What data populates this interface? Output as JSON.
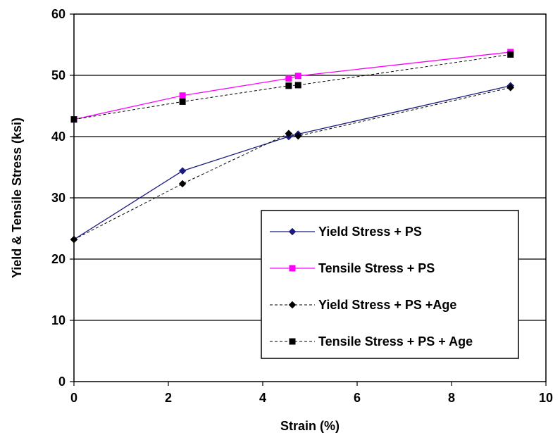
{
  "chart_data": {
    "type": "line",
    "xlabel": "Strain (%)",
    "ylabel": "Yield & Tensile Stress (ksi)",
    "xlim": [
      0,
      10
    ],
    "ylim": [
      0,
      60
    ],
    "xticks": [
      0,
      2,
      4,
      6,
      8,
      10
    ],
    "yticks": [
      0,
      10,
      20,
      30,
      40,
      50,
      60
    ],
    "grid": "horizontal",
    "legend_position": "bottom-right",
    "series": [
      {
        "name": "Yield Stress + PS",
        "color": "#1a1a80",
        "line_style": "solid",
        "marker": "diamond",
        "points": [
          [
            0,
            23.2
          ],
          [
            2.3,
            34.4
          ],
          [
            4.55,
            40.0
          ],
          [
            4.75,
            40.4
          ],
          [
            9.25,
            48.3
          ]
        ]
      },
      {
        "name": "Tensile Stress + PS",
        "color": "#ff00ff",
        "line_style": "solid",
        "marker": "square",
        "points": [
          [
            0,
            42.8
          ],
          [
            2.3,
            46.7
          ],
          [
            4.55,
            49.5
          ],
          [
            4.75,
            49.9
          ],
          [
            9.25,
            53.8
          ]
        ]
      },
      {
        "name": "Yield Stress + PS +Age",
        "color": "#000000",
        "line_style": "dashed",
        "marker": "diamond",
        "points": [
          [
            0,
            23.2
          ],
          [
            2.3,
            32.3
          ],
          [
            4.55,
            40.5
          ],
          [
            4.75,
            40.1
          ],
          [
            9.25,
            48.0
          ]
        ]
      },
      {
        "name": "Tensile Stress + PS + Age",
        "color": "#000000",
        "line_style": "dashed",
        "marker": "square",
        "points": [
          [
            0,
            42.8
          ],
          [
            2.3,
            45.7
          ],
          [
            4.55,
            48.3
          ],
          [
            4.75,
            48.4
          ],
          [
            9.25,
            53.4
          ]
        ]
      }
    ]
  }
}
